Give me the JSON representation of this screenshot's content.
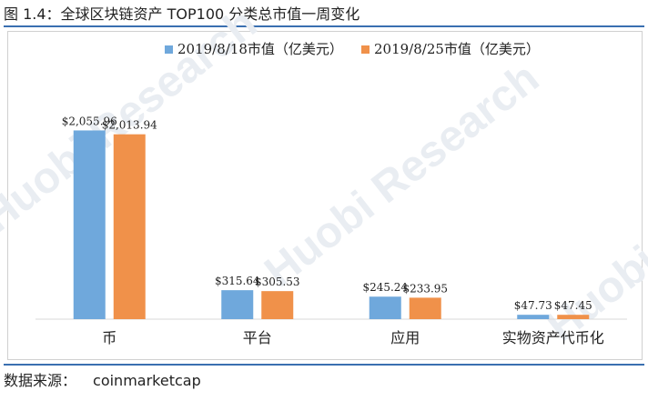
{
  "figure": {
    "title": "图 1.4：全球区块链资产 TOP100 分类总市值一周变化",
    "source_label": "数据来源：",
    "source_value": "coinmarketcap",
    "watermark": "Huobi Research"
  },
  "colors": {
    "series1": "#6fa8dc",
    "series2": "#f0914a",
    "rule": "#3a6fb0",
    "axis": "#d9d9d9",
    "watermark": "#e9edf2"
  },
  "chart_data": {
    "type": "bar",
    "categories": [
      "币",
      "平台",
      "应用",
      "实物资产代币化"
    ],
    "series": [
      {
        "name": "2019/8/18市值（亿美元）",
        "values": [
          2055.96,
          315.64,
          245.24,
          47.73
        ]
      },
      {
        "name": "2019/8/25市值（亿美元）",
        "values": [
          2013.94,
          305.53,
          233.95,
          47.45
        ]
      }
    ],
    "data_labels": [
      [
        "$2,055.96",
        "$315.64",
        "$245.24",
        "$47.73"
      ],
      [
        "$2,013.94",
        "$305.53",
        "$233.95",
        "$47.45"
      ]
    ],
    "ylim": [
      0,
      2100
    ],
    "legend_position": "top-center",
    "grid": false
  }
}
